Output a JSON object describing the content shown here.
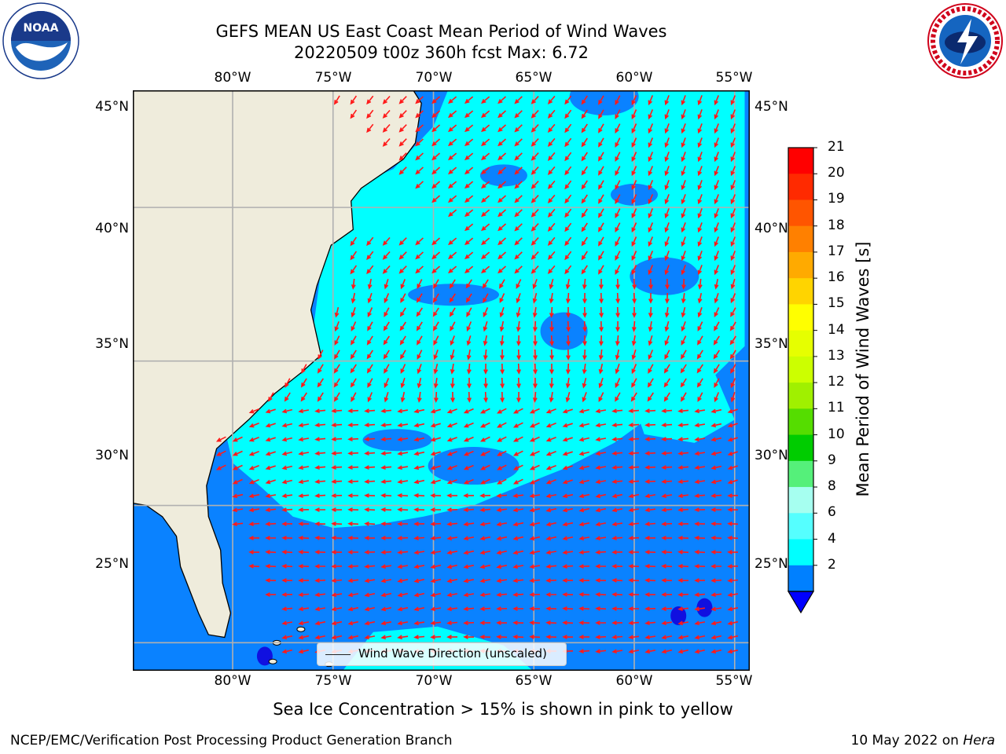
{
  "header": {
    "title_line1": "GEFS MEAN US East Coast Mean Period of Wind Waves",
    "title_line2": "20220509 t00z 360h fcst   Max: 6.72"
  },
  "logos": {
    "left": {
      "name": "noaa-logo",
      "text": "NOAA"
    },
    "right": {
      "name": "national-weather-service-logo",
      "text": "NATIONAL WEATHER SERVICE"
    }
  },
  "map": {
    "lon_top_labels": [
      "80°W",
      "75°W",
      "70°W",
      "65°W",
      "60°W",
      "55°W"
    ],
    "lon_bottom_labels": [
      "80°W",
      "75°W",
      "70°W",
      "65°W",
      "60°W",
      "55°W"
    ],
    "lat_left_labels": [
      "45°N",
      "40°N",
      "35°N",
      "30°N",
      "25°N"
    ],
    "lat_right_labels": [
      "45°N",
      "40°N",
      "35°N",
      "30°N",
      "25°N"
    ],
    "legend_label": "Wind Wave Direction (unscaled)",
    "land_color": "#efecdc",
    "arrow_color": "#ff1a1a",
    "grid_color": "#b0b0b0"
  },
  "colorbar": {
    "title": "Mean Period of Wind Waves [s]",
    "tick_labels": [
      "21",
      "20",
      "19",
      "18",
      "17",
      "16",
      "15",
      "14",
      "13",
      "12",
      "11",
      "10",
      "9",
      "8",
      "6",
      "4",
      "2"
    ],
    "colors": [
      "#ff0000",
      "#ff2a00",
      "#ff5500",
      "#ff8000",
      "#ffaa00",
      "#ffd400",
      "#ffff00",
      "#e6ff00",
      "#ccff00",
      "#a0f000",
      "#55dd00",
      "#00cc00",
      "#55f07a",
      "#a6fff0",
      "#55ffff",
      "#00ffff",
      "#0080ff"
    ],
    "extend_color": "#0000ff"
  },
  "chart_data": {
    "type": "heatmap",
    "title": "GEFS MEAN US East Coast Mean Period of Wind Waves",
    "subtitle": "20220509 t00z 360h fcst   Max: 6.72",
    "variable": "Mean Period of Wind Waves [s]",
    "max_value": 6.72,
    "lon_range": [
      -85,
      -54.5
    ],
    "lat_range": [
      20.5,
      46
    ],
    "color_levels": [
      2,
      4,
      6,
      8,
      9,
      10,
      11,
      12,
      13,
      14,
      15,
      16,
      17,
      18,
      19,
      20,
      21
    ],
    "grid": true,
    "legend_placement": "bottom-center"
  },
  "footer": {
    "sea_ice_note": "Sea Ice Concentration > 15% is shown in pink to yellow",
    "branch": "NCEP/EMC/Verification Post Processing Product Generation Branch",
    "date": "10 May 2022 on ",
    "machine": "Hera"
  }
}
